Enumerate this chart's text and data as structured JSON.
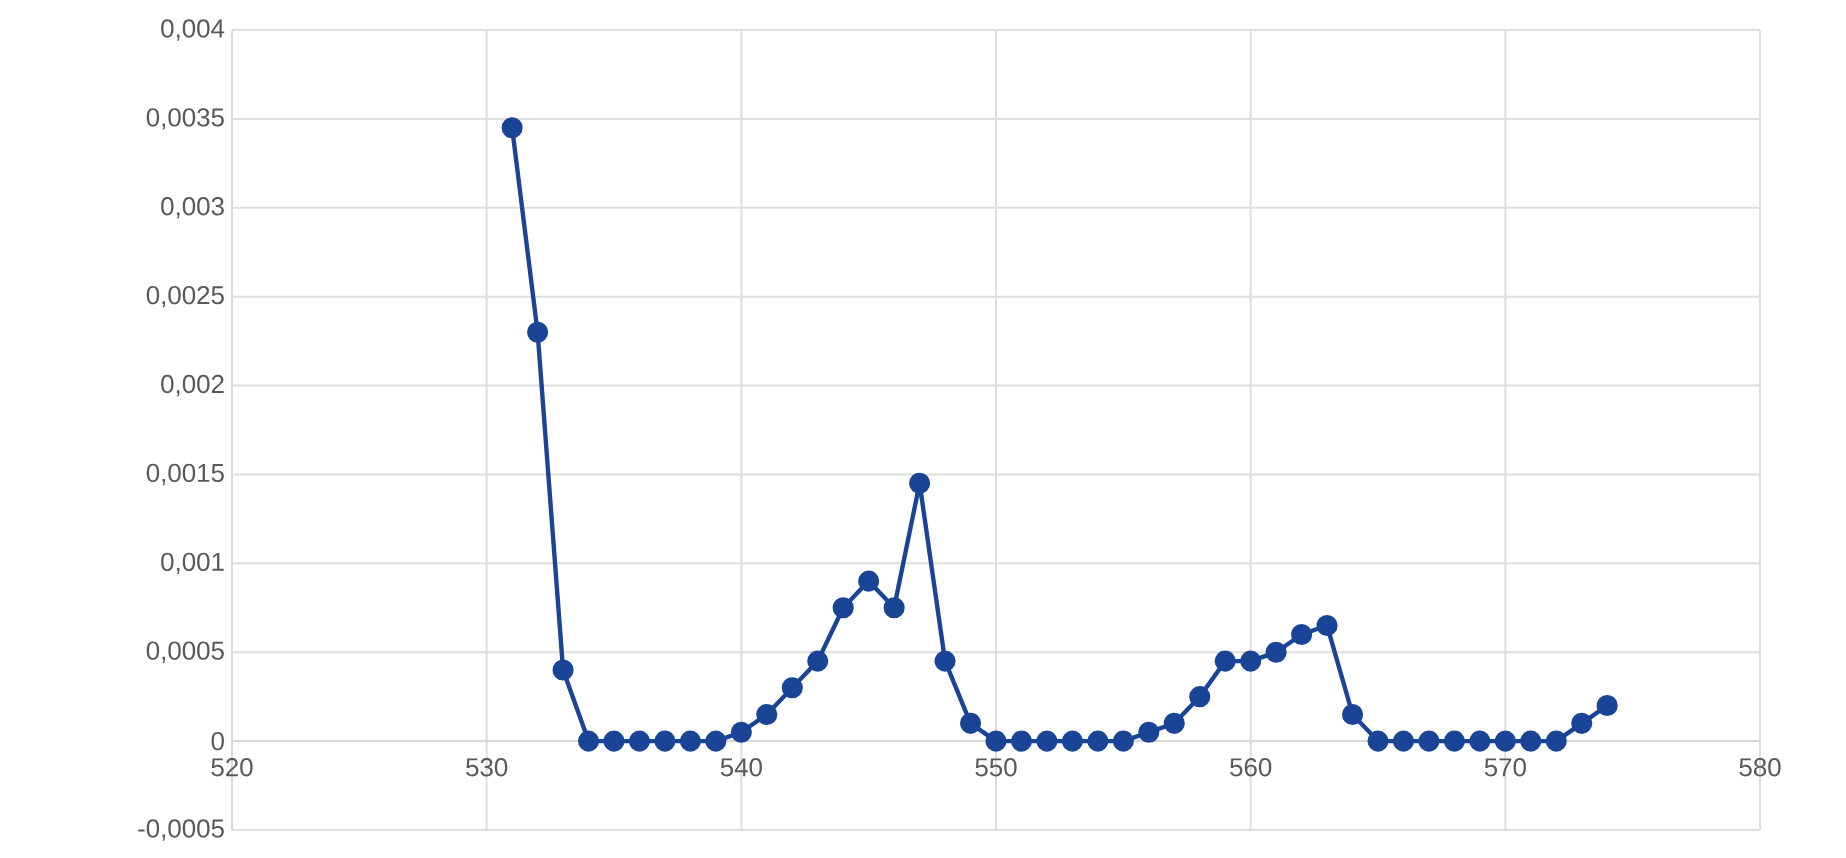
{
  "chart_data": {
    "type": "line",
    "x": [
      531,
      532,
      533,
      534,
      535,
      536,
      537,
      538,
      539,
      540,
      541,
      542,
      543,
      544,
      545,
      546,
      547,
      548,
      549,
      550,
      551,
      552,
      553,
      554,
      555,
      556,
      557,
      558,
      559,
      560,
      561,
      562,
      563,
      564,
      565,
      566,
      567,
      568,
      569,
      570,
      571,
      572,
      573,
      574
    ],
    "series": [
      {
        "color": "#1a4496",
        "values": [
          0.00345,
          0.0023,
          0.0004,
          0,
          0,
          0,
          0,
          0,
          0,
          5e-05,
          0.00015,
          0.0003,
          0.00045,
          0.00075,
          0.0009,
          0.00075,
          0.00145,
          0.00045,
          0.0001,
          0,
          0,
          0,
          0,
          0,
          0,
          5e-05,
          0.0001,
          0.00025,
          0.00045,
          0.00045,
          0.0005,
          0.0006,
          0.00065,
          0.00015,
          0,
          0,
          0,
          0,
          0,
          0,
          0,
          0,
          0.0001,
          0.0002
        ]
      }
    ],
    "xlim": [
      520,
      580
    ],
    "xticks": [
      520,
      530,
      540,
      550,
      560,
      570,
      580
    ],
    "ylim": [
      -0.0005,
      0.004
    ],
    "yticks": [
      {
        "value": -0.0005,
        "label": "-0,0005"
      },
      0,
      {
        "value": 0.0005,
        "label": "0,0005"
      },
      {
        "value": 0.001,
        "label": "0,001"
      },
      {
        "value": 0.0015,
        "label": "0,0015"
      },
      {
        "value": 0.002,
        "label": "0,002"
      },
      {
        "value": 0.0025,
        "label": "0,0025"
      },
      {
        "value": 0.003,
        "label": "0,003"
      },
      {
        "value": 0.0035,
        "label": "0,0035"
      },
      {
        "value": 0.004,
        "label": "0,004"
      }
    ],
    "grid": true,
    "marker": "circle",
    "line_style": "solid"
  }
}
